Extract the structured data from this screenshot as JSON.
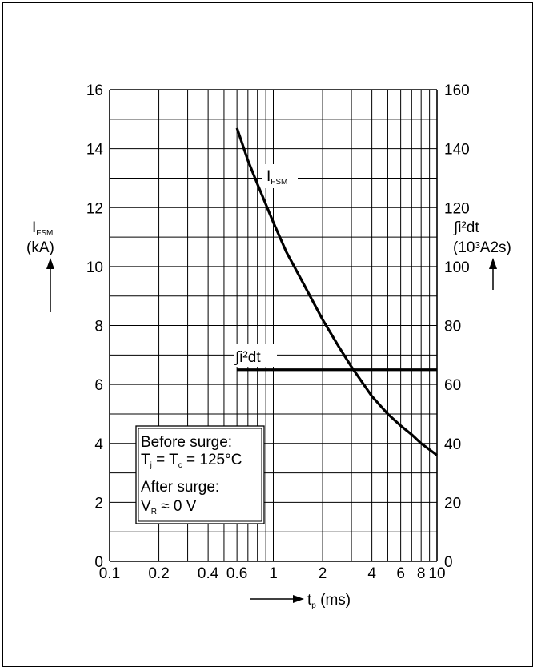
{
  "chart_data": {
    "type": "line",
    "x_scale": "log",
    "xlim": [
      0.1,
      10
    ],
    "ylim_left": [
      0,
      16
    ],
    "ylim_right": [
      0,
      160
    ],
    "x_ticks": [
      0.1,
      0.2,
      0.4,
      0.6,
      1,
      2,
      4,
      6,
      8,
      10
    ],
    "x_tick_labels": [
      "0.1",
      "0.2",
      "0.4",
      "0.6",
      "1",
      "2",
      "4",
      "6",
      "8",
      "10"
    ],
    "y_left_ticks": [
      0,
      2,
      4,
      6,
      8,
      10,
      12,
      14,
      16
    ],
    "y_left_tick_labels": [
      "0",
      "2",
      "4",
      "6",
      "8",
      "10",
      "12",
      "14",
      "16"
    ],
    "y_right_ticks": [
      0,
      20,
      40,
      60,
      80,
      100,
      120,
      140,
      160
    ],
    "y_right_tick_labels": [
      "0",
      "20",
      "40",
      "60",
      "80",
      "100",
      "120",
      "140",
      "160"
    ],
    "grid": true,
    "xlabel": {
      "main": "t",
      "sub": "p",
      "unit": " (ms)"
    },
    "ylabel_left": {
      "main": "I",
      "sub": "FSM",
      "unit": "(kA)"
    },
    "ylabel_right": {
      "line1": "∫i²dt",
      "line2": "(10³A2s)"
    },
    "series": [
      {
        "name": "I_FSM",
        "label_main": "I",
        "label_sub": "FSM",
        "axis": "left",
        "x": [
          0.6,
          0.7,
          0.8,
          1.0,
          1.2,
          1.5,
          2.0,
          2.5,
          3.0,
          4.0,
          5.0,
          6.0,
          7.0,
          8.0,
          10.0
        ],
        "y": [
          14.7,
          13.6,
          12.8,
          11.5,
          10.5,
          9.5,
          8.2,
          7.3,
          6.6,
          5.6,
          5.0,
          4.6,
          4.3,
          4.0,
          3.6
        ]
      },
      {
        "name": "∫i²dt",
        "label_main": "∫i²dt",
        "axis": "right",
        "x": [
          0.6,
          10.0
        ],
        "y": [
          65,
          65
        ]
      }
    ],
    "annotation": {
      "line1": "Before surge:",
      "line2_a": "T",
      "line2_a_sub": "j",
      "line2_b": " = T",
      "line2_b_sub": "c",
      "line2_c": " = 125°C",
      "line3": "After surge:",
      "line4_a": "V",
      "line4_a_sub": "R",
      "line4_b": " ≈ 0 V"
    },
    "colors": {
      "line": "#000000",
      "grid": "#000000",
      "background": "#ffffff"
    }
  }
}
